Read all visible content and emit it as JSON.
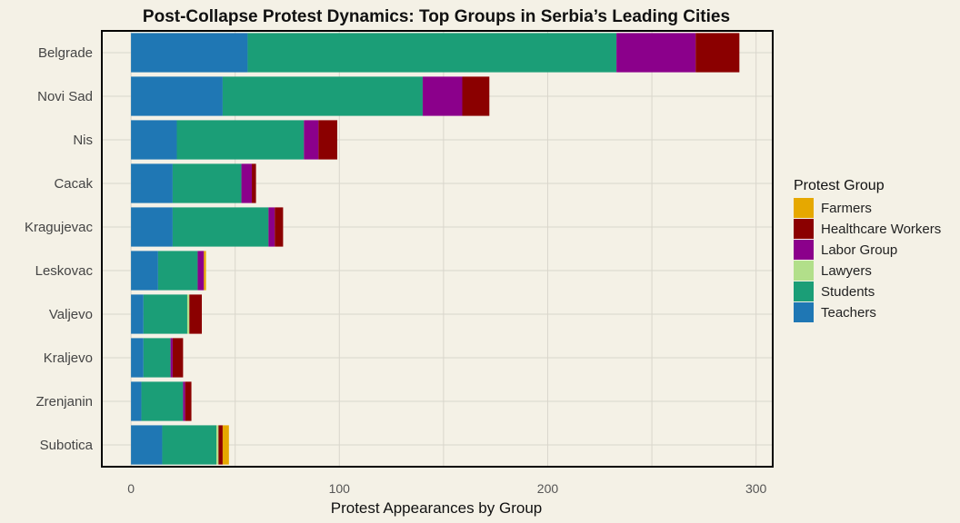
{
  "chart_data": {
    "type": "bar",
    "orientation": "horizontal",
    "stacked": true,
    "title": "Post-Collapse Protest Dynamics: Top Groups in Serbia’s Leading Cities",
    "xlabel": "Protest Appearances by Group",
    "ylabel": "",
    "xlim": [
      -14,
      308
    ],
    "xticks": [
      0,
      100,
      200,
      300
    ],
    "grid": true,
    "legend_position": "right",
    "legend_title": "Protest Group",
    "categories": [
      "Belgrade",
      "Novi Sad",
      "Nis",
      "Cacak",
      "Kragujevac",
      "Leskovac",
      "Valjevo",
      "Kraljevo",
      "Zrenjanin",
      "Subotica"
    ],
    "stack_order": [
      "Teachers",
      "Students",
      "Lawyers",
      "Labor Group",
      "Healthcare Workers",
      "Farmers"
    ],
    "series": [
      {
        "name": "Teachers",
        "color": "#1f77b4",
        "values": [
          56,
          44,
          22,
          20,
          20,
          13,
          6,
          6,
          5,
          15
        ]
      },
      {
        "name": "Students",
        "color": "#1b9e77",
        "values": [
          177,
          96,
          61,
          33,
          46,
          19,
          21,
          13,
          20,
          26
        ]
      },
      {
        "name": "Lawyers",
        "color": "#b2df8a",
        "values": [
          0,
          0,
          0,
          0,
          0,
          0,
          1,
          0,
          0,
          1
        ]
      },
      {
        "name": "Labor Group",
        "color": "#8b008b",
        "values": [
          38,
          19,
          7,
          5,
          3,
          3,
          0,
          1,
          1,
          0
        ]
      },
      {
        "name": "Healthcare Workers",
        "color": "#8b0000",
        "values": [
          21,
          13,
          9,
          2,
          4,
          0,
          6,
          5,
          3,
          2
        ]
      },
      {
        "name": "Farmers",
        "color": "#e6a800",
        "values": [
          0,
          0,
          0,
          0,
          0,
          1,
          0,
          0,
          0,
          3
        ]
      }
    ],
    "legend_order": [
      "Farmers",
      "Healthcare Workers",
      "Labor Group",
      "Lawyers",
      "Students",
      "Teachers"
    ]
  }
}
